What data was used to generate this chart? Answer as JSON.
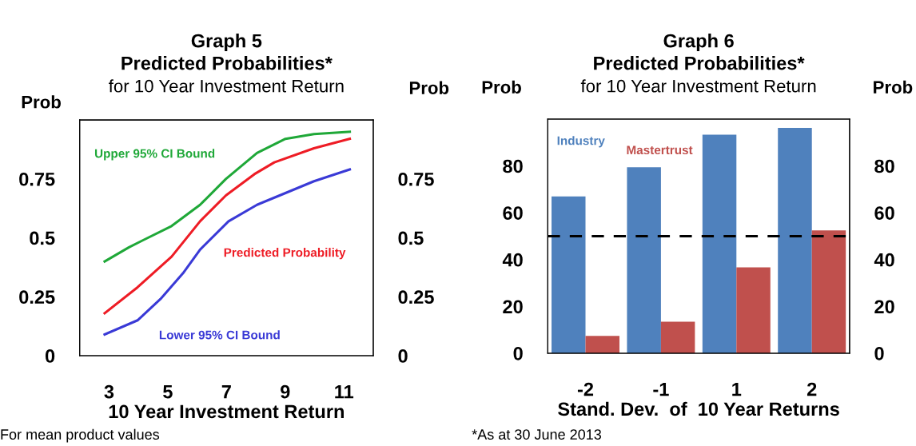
{
  "chart_data": [
    {
      "type": "line",
      "title": "Graph 5\nPredicted Probabilities*",
      "subtitle": "for 10 Year Investment Return",
      "xlabel": "10 Year Investment Return",
      "ylabel": "Prob",
      "y2label": "Prob",
      "series": [
        {
          "name": "Upper 95% CI Bound",
          "color": "#1fa838",
          "x": [
            2.85,
            3.68,
            4.16,
            5.13,
            6.1,
            6.98,
            8.04,
            9.01,
            9.98,
            11.2
          ],
          "values": [
            0.4,
            0.46,
            0.49,
            0.55,
            0.64,
            0.75,
            0.86,
            0.92,
            0.94,
            0.95
          ]
        },
        {
          "name": "Predicted Probability",
          "color": "#ee1c25",
          "x": [
            2.85,
            3.97,
            5.13,
            6.1,
            6.98,
            7.95,
            8.63,
            9.98,
            11.2
          ],
          "values": [
            0.18,
            0.29,
            0.42,
            0.57,
            0.68,
            0.77,
            0.82,
            0.88,
            0.92
          ]
        },
        {
          "name": "Lower 95% CI Bound",
          "color": "#3a3ad6",
          "x": [
            2.85,
            3.97,
            4.75,
            5.52,
            6.1,
            7.07,
            8.04,
            9.01,
            9.98,
            11.2
          ],
          "values": [
            0.09,
            0.15,
            0.24,
            0.35,
            0.45,
            0.57,
            0.64,
            0.69,
            0.74,
            0.79
          ]
        }
      ],
      "xlim": [
        2,
        12
      ],
      "xticks": [
        3,
        5,
        7,
        9,
        11
      ],
      "ylim": [
        0,
        1
      ],
      "yticks": [
        0,
        0.25,
        0.5,
        0.75
      ],
      "y2lim": [
        0,
        1
      ],
      "y2ticks": [
        0,
        0.25,
        0.5,
        0.75
      ],
      "grid": false,
      "legend": false,
      "marker": "none",
      "line_style": "solid",
      "annotations": [
        "For mean product values"
      ]
    },
    {
      "type": "bar",
      "title": "Graph 6\nPredicted Probabilities*",
      "subtitle": "for 10 Year Investment Return",
      "xlabel": "Stand. Dev.  of  10 Year Returns",
      "ylabel": "Prob",
      "y2label": "Prob",
      "categories": [
        "-2",
        "-1",
        "1",
        "2"
      ],
      "series": [
        {
          "name": "Industry",
          "color": "#4f81bd",
          "values": [
            67,
            79.4,
            93.3,
            96.2
          ]
        },
        {
          "name": "Mastertrust",
          "color": "#c0504d",
          "values": [
            7.4,
            13.5,
            36.7,
            52.5
          ]
        }
      ],
      "ylim": [
        0,
        100
      ],
      "yticks": [
        0,
        20,
        40,
        60,
        80
      ],
      "y2lim": [
        0,
        100
      ],
      "y2ticks": [
        0,
        20,
        40,
        60,
        80
      ],
      "ref_lines": [
        {
          "axis": "y",
          "value": 50,
          "color": "#000000",
          "line_style": "dashed"
        }
      ],
      "grid": false,
      "legend": false,
      "annotations": [
        "*As at 30 June 2013"
      ]
    }
  ]
}
